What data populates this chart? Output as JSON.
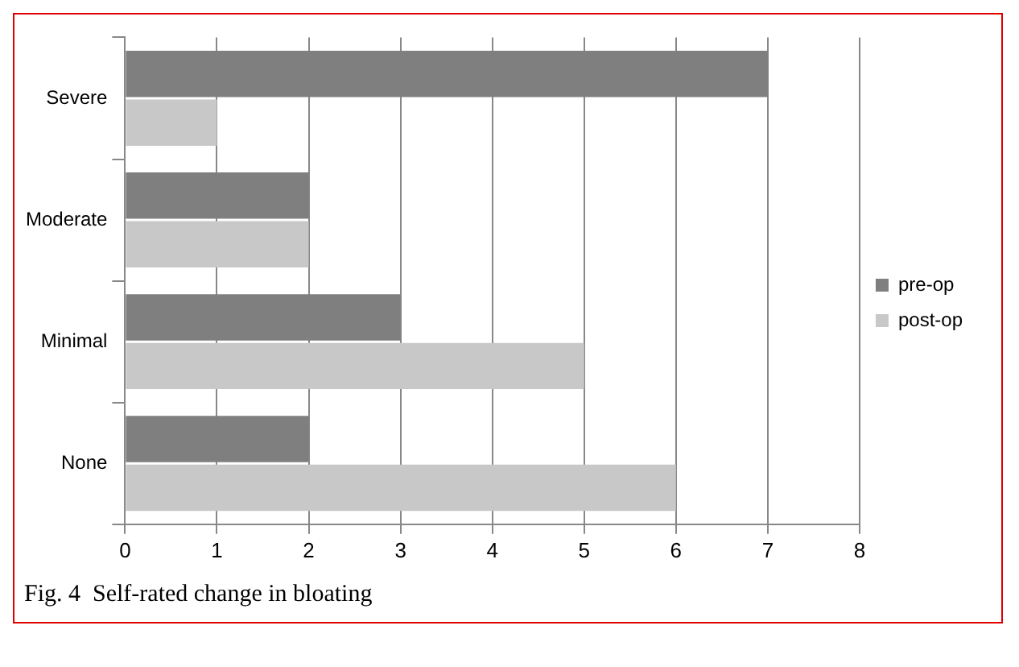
{
  "chart_data": {
    "type": "bar",
    "orientation": "horizontal",
    "categories": [
      "Severe",
      "Moderate",
      "Minimal",
      "None"
    ],
    "series": [
      {
        "name": "pre-op",
        "color": "#7f7f7f",
        "values": [
          7,
          2,
          3,
          2
        ]
      },
      {
        "name": "post-op",
        "color": "#c8c8c8",
        "values": [
          1,
          2,
          5,
          6
        ]
      }
    ],
    "xlim": [
      0,
      8
    ],
    "xticks": [
      0,
      1,
      2,
      3,
      4,
      5,
      6,
      7,
      8
    ],
    "grid": "x",
    "legend": "right",
    "annotations": [
      "Fig. 4  Self-rated change in bloating"
    ]
  }
}
